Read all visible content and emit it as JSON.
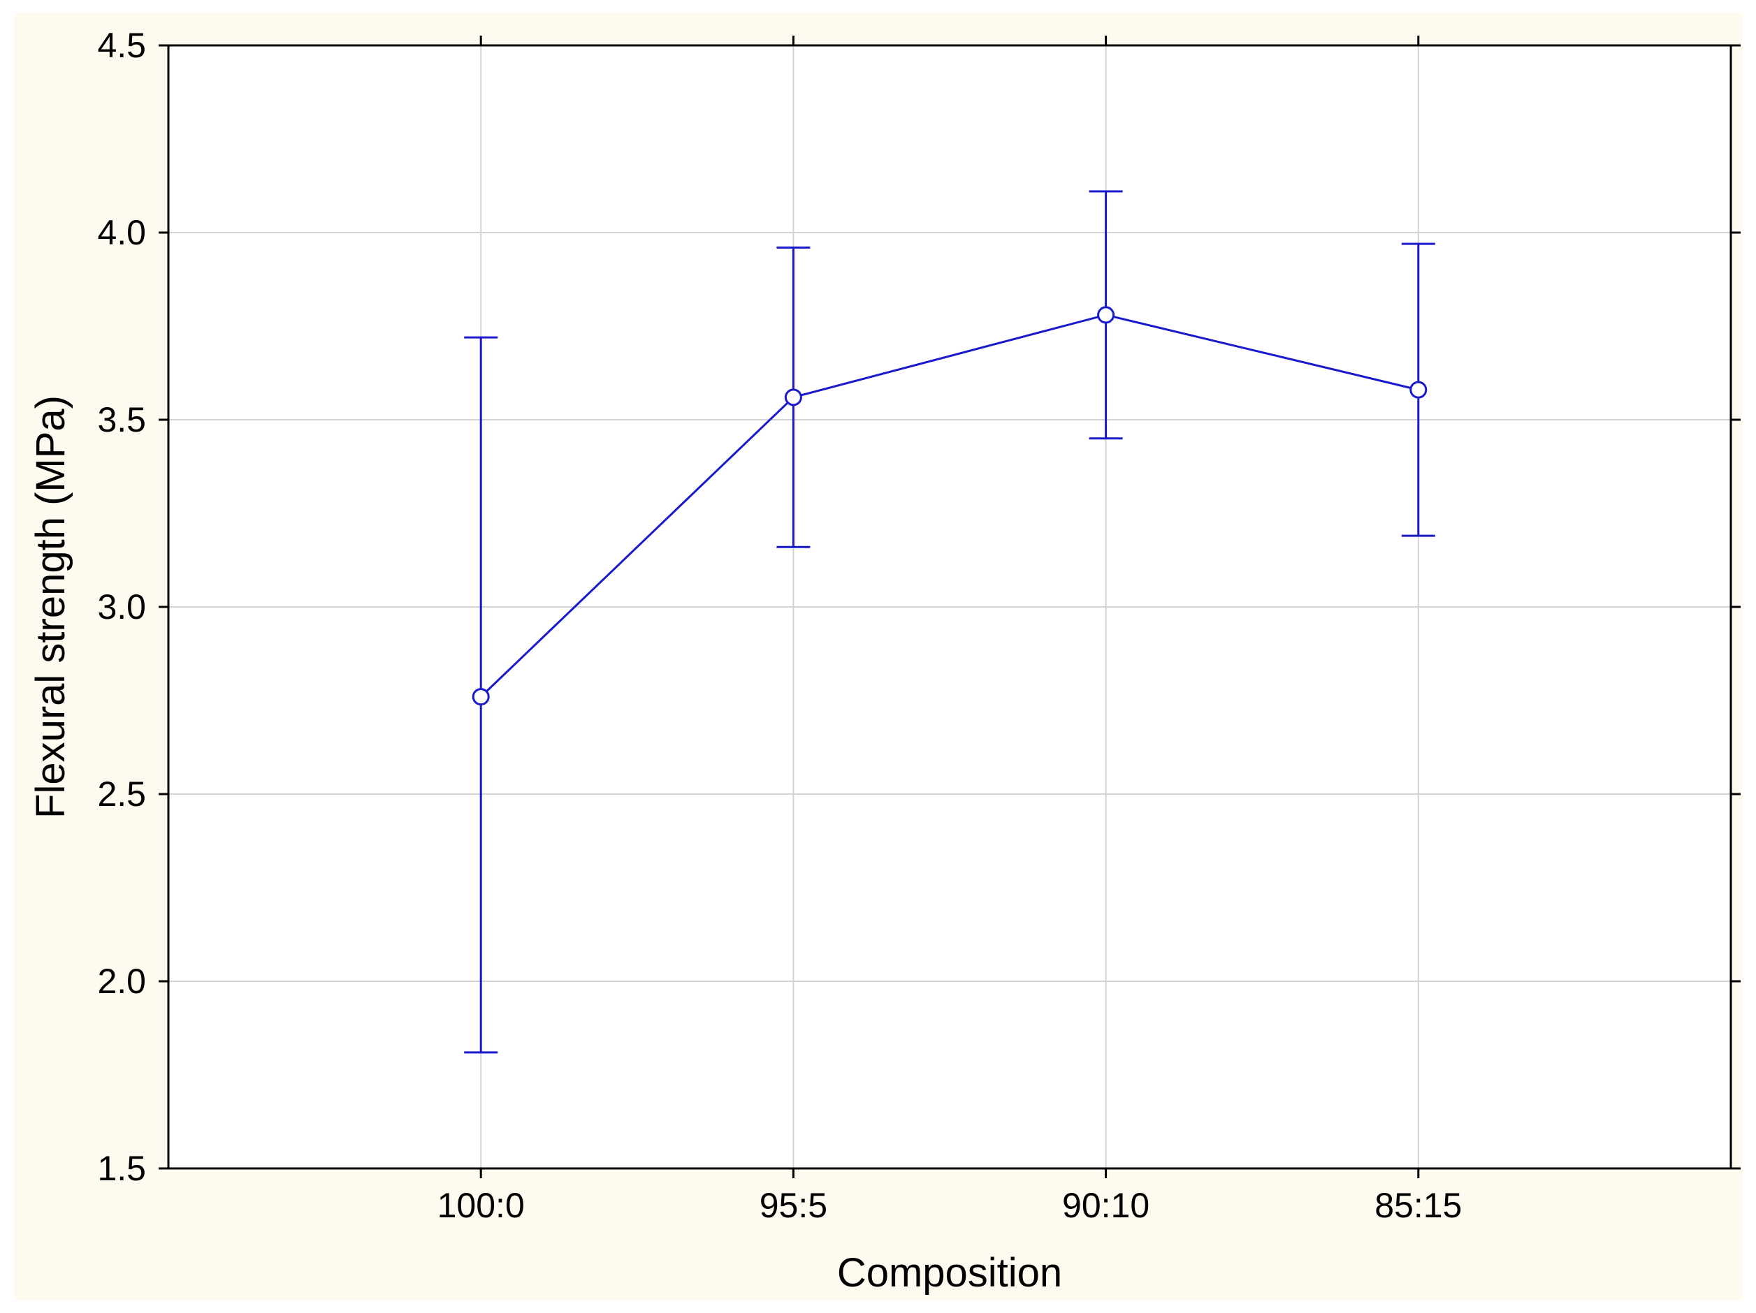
{
  "colors": {
    "background": "#fefaf0",
    "plot_background": "#ffffff",
    "grid": "#d3d3d3",
    "axis": "#000000",
    "series": "#1a1acc"
  },
  "chart_data": {
    "type": "line",
    "title": "",
    "xlabel": "Composition",
    "ylabel": "Flexural strength (MPa)",
    "categories": [
      "100:0",
      "95:5",
      "90:10",
      "85:15"
    ],
    "series": [
      {
        "values": [
          2.76,
          3.56,
          3.78,
          3.58
        ],
        "error_low": [
          1.81,
          3.16,
          3.45,
          3.19
        ],
        "error_high": [
          3.72,
          3.96,
          4.11,
          3.97
        ],
        "marker": "circle-open"
      }
    ],
    "ylim": [
      1.5,
      4.5
    ],
    "yticks": [
      "1.5",
      "2.0",
      "2.5",
      "3.0",
      "3.5",
      "4.0",
      "4.5"
    ],
    "x_category_range": [
      0,
      5
    ],
    "grid": true,
    "legend": "none"
  }
}
